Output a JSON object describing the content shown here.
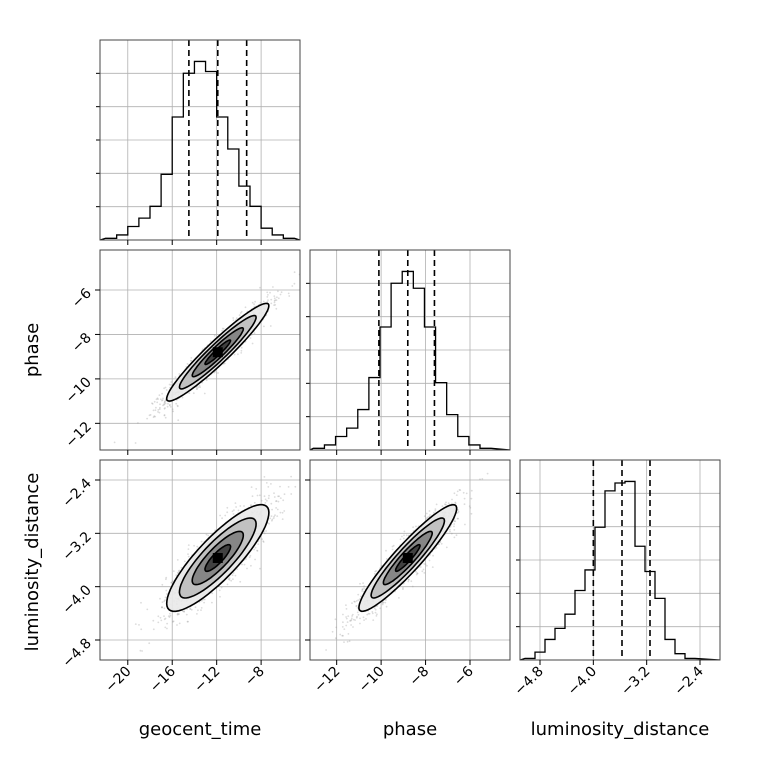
{
  "chart_data": {
    "type": "corner",
    "parameters": [
      {
        "name": "geocent_time",
        "axis_label": "geocent_time",
        "range": [
          -22.5,
          -4.5
        ],
        "ticks": [
          -20,
          -16,
          -12,
          -8
        ],
        "tick_labels": [
          "−20",
          "−16",
          "−12",
          "−8"
        ],
        "quantiles": [
          -14.5,
          -11.9,
          -9.3
        ],
        "histogram": {
          "bins": [
            -21.5,
            -20.5,
            -19.5,
            -18.5,
            -17.5,
            -16.5,
            -15.5,
            -14.5,
            -13.5,
            -12.5,
            -11.5,
            -10.5,
            -9.5,
            -8.5,
            -7.5,
            -6.5,
            -5.5
          ],
          "heights": [
            0.01,
            0.03,
            0.08,
            0.13,
            0.2,
            0.39,
            0.73,
            0.99,
            1.06,
            1.0,
            0.73,
            0.54,
            0.32,
            0.2,
            0.07,
            0.03,
            0.01
          ]
        }
      },
      {
        "name": "phase",
        "axis_label": "phase",
        "range": [
          -13.2,
          -4.2
        ],
        "ticks": [
          -12,
          -10,
          -8,
          -6
        ],
        "tick_labels": [
          "−12",
          "−10",
          "−8",
          "−6"
        ],
        "quantiles": [
          -10.1,
          -8.8,
          -7.6
        ],
        "histogram": {
          "bins": [
            -12.8,
            -12.3,
            -11.8,
            -11.3,
            -10.8,
            -10.3,
            -9.8,
            -9.3,
            -8.8,
            -8.3,
            -7.8,
            -7.3,
            -6.8,
            -6.3,
            -5.8,
            -5.3
          ],
          "heights": [
            0.01,
            0.03,
            0.08,
            0.13,
            0.24,
            0.43,
            0.73,
            0.99,
            1.06,
            0.96,
            0.73,
            0.4,
            0.21,
            0.08,
            0.03,
            0.01
          ]
        }
      },
      {
        "name": "luminosity_distance",
        "axis_label": "luminosity_distance",
        "range": [
          -5.1,
          -2.1
        ],
        "ticks": [
          -4.8,
          -4.0,
          -3.2,
          -2.4
        ],
        "tick_labels": [
          "−4.8",
          "−4.0",
          "−3.2",
          "−2.4"
        ],
        "quantiles": [
          -4.0,
          -3.57,
          -3.15
        ],
        "histogram": {
          "bins": [
            -4.95,
            -4.8,
            -4.65,
            -4.5,
            -4.35,
            -4.2,
            -4.05,
            -3.9,
            -3.75,
            -3.6,
            -3.45,
            -3.3,
            -3.15,
            -3.0,
            -2.85,
            -2.7,
            -2.55
          ],
          "heights": [
            0.01,
            0.05,
            0.13,
            0.2,
            0.29,
            0.44,
            0.57,
            0.84,
            1.07,
            1.12,
            1.13,
            0.72,
            0.56,
            0.39,
            0.13,
            0.04,
            0.01
          ]
        }
      }
    ],
    "pairs": [
      {
        "x": "geocent_time",
        "y": "phase",
        "mean": [
          -11.9,
          -8.8
        ],
        "sd": [
          2.3,
          1.1
        ],
        "corr": 0.95,
        "y_ticks": [
          -12,
          -10,
          -8,
          -6
        ],
        "y_tick_labels": [
          "−12",
          "−10",
          "−8",
          "−6"
        ],
        "y_label": "phase"
      },
      {
        "x": "geocent_time",
        "y": "luminosity_distance",
        "mean": [
          -11.9,
          -3.57
        ],
        "sd": [
          2.3,
          0.4
        ],
        "corr": 0.85,
        "y_ticks": [
          -4.8,
          -4.0,
          -3.2,
          -2.4
        ],
        "y_tick_labels": [
          "−4.8",
          "−4.0",
          "−3.2",
          "−2.4"
        ],
        "y_label": "luminosity_distance"
      },
      {
        "x": "phase",
        "y": "luminosity_distance",
        "mean": [
          -8.8,
          -3.57
        ],
        "sd": [
          1.1,
          0.4
        ],
        "corr": 0.93
      }
    ],
    "contour_levels": [
      0.5,
      1.0,
      1.5,
      2.0
    ],
    "grid": true,
    "colors": {
      "scatter": "#9a9a9a",
      "contour": "#000000",
      "grid": "#b0b0b0",
      "quantile": "#000000"
    }
  }
}
